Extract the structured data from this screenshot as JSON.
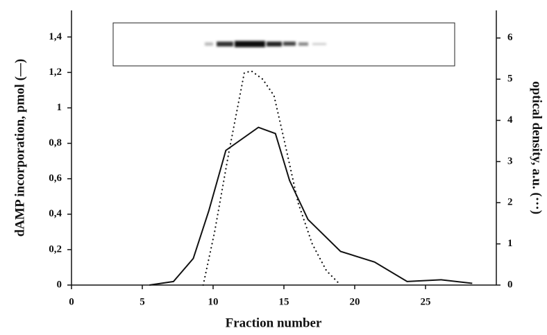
{
  "chart_data": {
    "type": "line",
    "xlabel": "Fraction number",
    "ylabel": "dAMP incorporation, pmol (—)",
    "y2label": "optical density, a.u. (···)",
    "xlim": [
      0,
      30
    ],
    "xticks": [
      0,
      5,
      10,
      15,
      20,
      25
    ],
    "ylim": [
      0,
      1.55
    ],
    "yticks": [
      0,
      {
        "value": 0.2,
        "label": "0,2"
      },
      {
        "value": 0.4,
        "label": "0,4"
      },
      {
        "value": 0.6,
        "label": "0,6"
      },
      {
        "value": 0.8,
        "label": "0,8"
      },
      1,
      {
        "value": 1.2,
        "label": "1,2"
      },
      {
        "value": 1.4,
        "label": "1,4"
      }
    ],
    "y2lim": [
      0,
      6.67
    ],
    "y2ticks": [
      0,
      1,
      2,
      3,
      4,
      5,
      6
    ],
    "series": [
      {
        "color": "#111111",
        "style": "solid",
        "x": [
          5.5,
          7.2,
          8.6,
          9.7,
          10.9,
          13.2,
          14.4,
          15.4,
          16.7,
          19.0,
          21.4,
          23.7,
          26.1,
          28.3
        ],
        "values": [
          0,
          0.02,
          0.15,
          0.42,
          0.76,
          0.89,
          0.855,
          0.59,
          0.37,
          0.19,
          0.13,
          0.02,
          0.03,
          0.01
        ]
      },
      {
        "color": "#111111",
        "style": "dotted",
        "axis": "y2",
        "x": [
          9.3,
          10.1,
          11.1,
          12.2,
          12.7,
          13.5,
          14.3,
          15.0,
          16.0,
          17.0,
          18.0,
          19.0
        ],
        "values": [
          0,
          1.28,
          3.2,
          5.15,
          5.2,
          5.0,
          4.6,
          3.55,
          2.0,
          1.0,
          0.35,
          0
        ]
      }
    ]
  }
}
